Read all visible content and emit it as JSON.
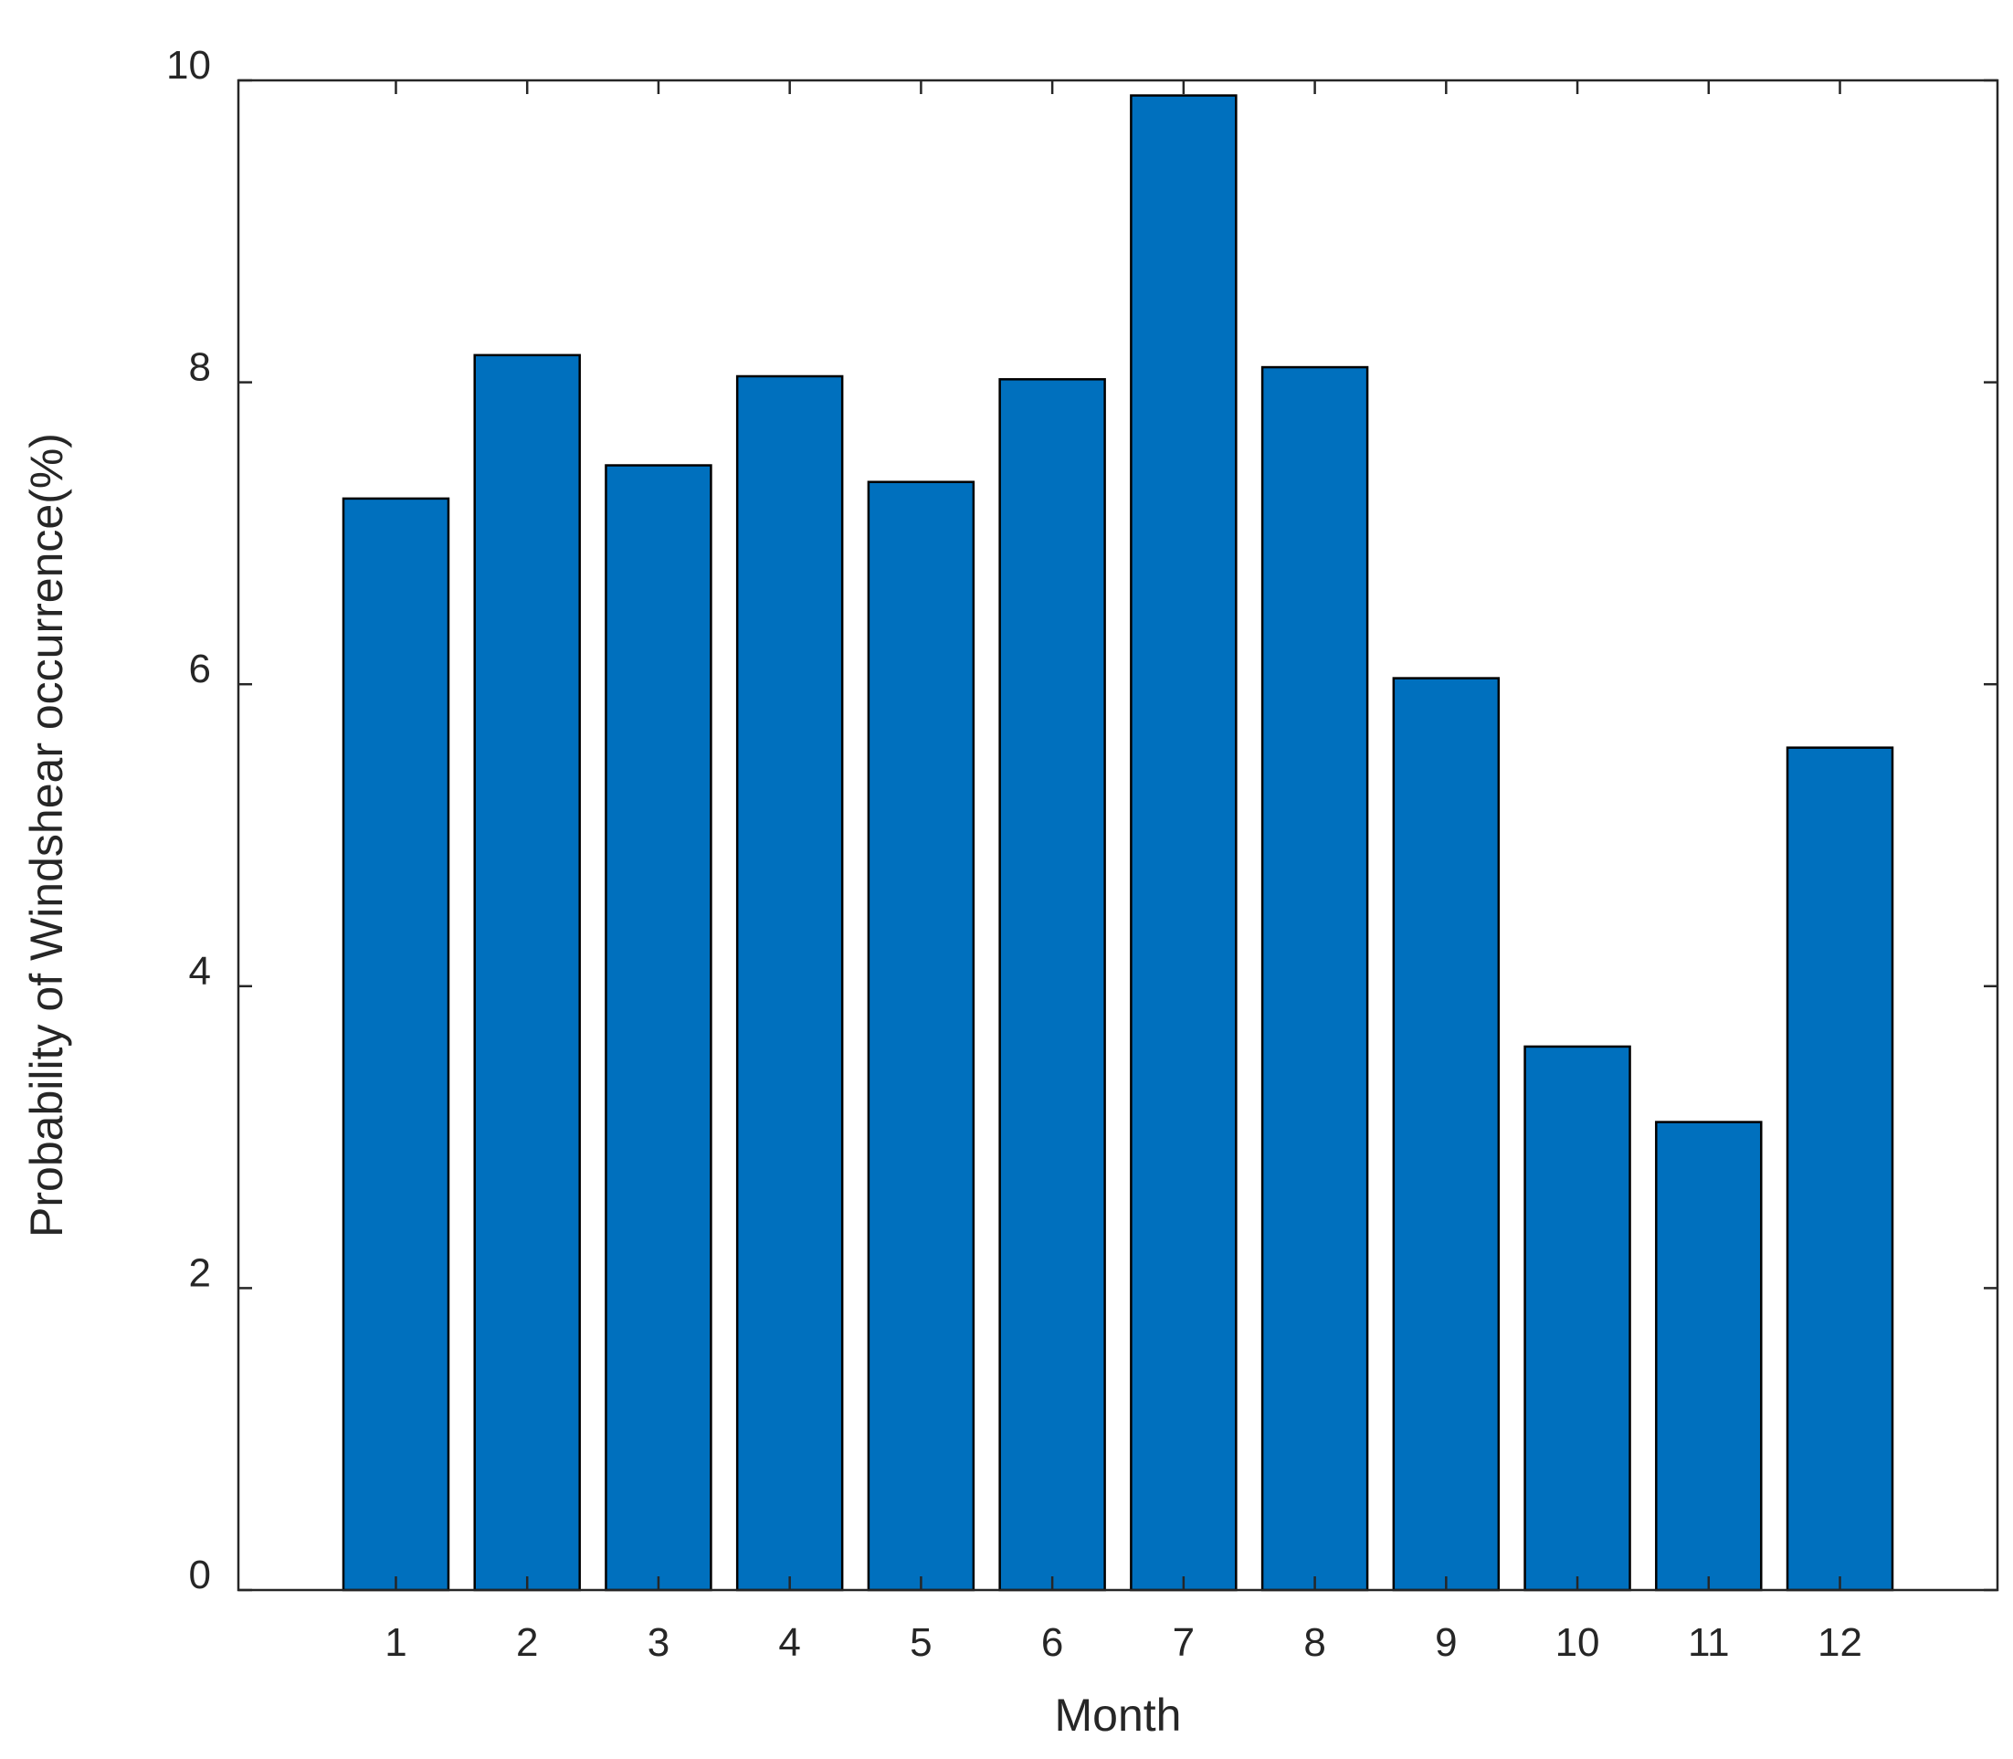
{
  "chart_data": {
    "type": "bar",
    "categories": [
      "1",
      "2",
      "3",
      "4",
      "5",
      "6",
      "7",
      "8",
      "9",
      "10",
      "11",
      "12"
    ],
    "values": [
      7.23,
      8.18,
      7.45,
      8.04,
      7.34,
      8.02,
      9.9,
      8.1,
      6.04,
      3.6,
      3.1,
      5.58
    ],
    "xlabel": "Month",
    "ylabel": "Probability of Windshear occurrence(%)",
    "ylim": [
      0,
      10
    ],
    "yticks": [
      "0",
      "2",
      "4",
      "6",
      "8",
      "10"
    ],
    "bar_color": "#0070BE",
    "edge_color": "#000000",
    "grid": false,
    "legend": "none"
  }
}
